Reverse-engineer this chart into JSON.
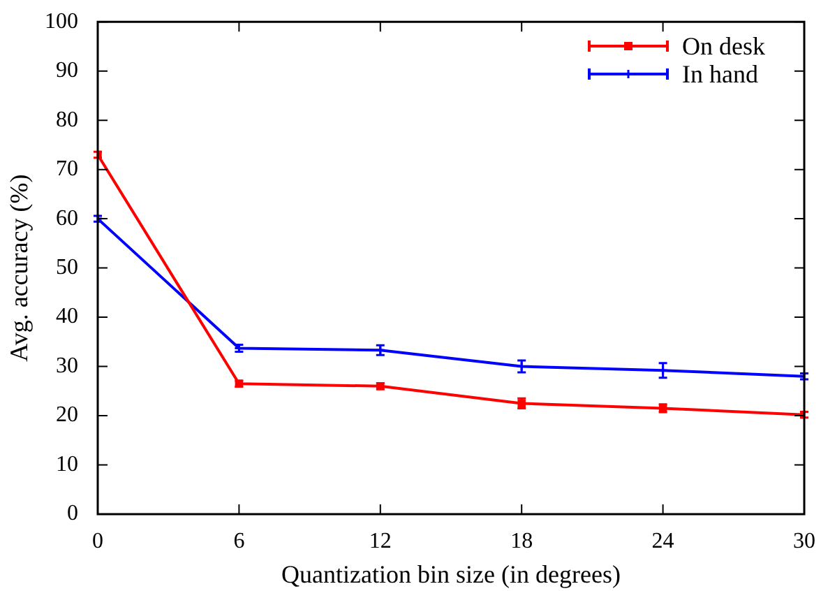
{
  "chart_data": {
    "type": "line",
    "xlabel": "Quantization bin size (in degrees)",
    "ylabel": "Avg. accuracy (%)",
    "x": [
      0,
      6,
      12,
      18,
      24,
      30
    ],
    "xlim": [
      0,
      30
    ],
    "xticks": [
      0,
      6,
      12,
      18,
      24,
      30
    ],
    "ylim": [
      0,
      100
    ],
    "yticks": [
      0,
      10,
      20,
      30,
      40,
      50,
      60,
      70,
      80,
      90,
      100
    ],
    "legend": "top right",
    "line_style": "solid",
    "series": [
      {
        "name": "On desk",
        "color": "#ff0000",
        "marker": "square",
        "values": [
          73,
          26.5,
          26,
          22.5,
          21.5,
          20.2
        ],
        "errors": [
          0.6,
          0.6,
          0.6,
          1,
          0.8,
          0.6
        ]
      },
      {
        "name": "In hand",
        "color": "#0000ff",
        "marker": "cross",
        "values": [
          60,
          33.7,
          33.3,
          30,
          29.2,
          28
        ],
        "errors": [
          0.6,
          0.7,
          1,
          1.2,
          1.5,
          0.6
        ]
      }
    ]
  }
}
